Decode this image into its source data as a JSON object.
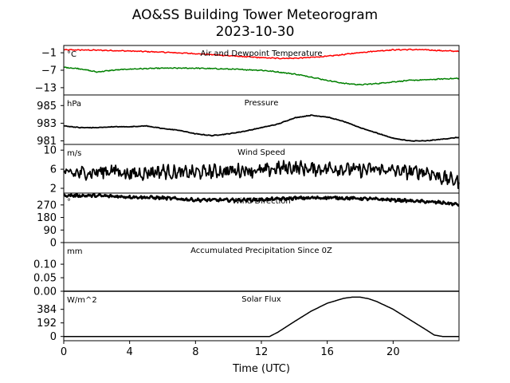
{
  "figure": {
    "title_line1": "AO&SS Building Tower Meteorogram",
    "title_line2": "2023-10-30",
    "xlabel": "Time (UTC)",
    "xticks": [
      "0",
      "4",
      "8",
      "12",
      "16",
      "20"
    ]
  },
  "chart_data": [
    {
      "type": "line",
      "title": "Air and Dewpoint Temperature",
      "unit": "°C",
      "xlim": [
        0,
        24
      ],
      "ylim": [
        -15.5,
        1.5
      ],
      "yticks": [
        -1,
        -7,
        -13
      ],
      "ytick_labels": [
        "−1",
        "−7",
        "−13"
      ],
      "series": [
        {
          "color": "#ff0000",
          "x": [
            0,
            2,
            4,
            6,
            8,
            10,
            12,
            13,
            14,
            15,
            16,
            17,
            18,
            19,
            20,
            21,
            22,
            23,
            24
          ],
          "values": [
            0.0,
            -0.1,
            -0.4,
            -0.8,
            -1.3,
            -2.0,
            -2.7,
            -2.9,
            -2.9,
            -2.6,
            -2.2,
            -1.6,
            -0.9,
            -0.4,
            0.0,
            0.1,
            0.0,
            -0.3,
            -0.5
          ]
        },
        {
          "color": "#008000",
          "x": [
            0,
            1,
            2,
            3,
            4,
            6,
            8,
            10,
            12,
            13,
            14,
            15,
            16,
            17,
            18,
            19,
            20,
            21,
            22,
            23,
            24
          ],
          "values": [
            -6.0,
            -6.5,
            -7.6,
            -7.0,
            -6.6,
            -6.3,
            -6.3,
            -6.6,
            -7.0,
            -7.6,
            -8.3,
            -9.3,
            -10.5,
            -11.5,
            -12.0,
            -11.6,
            -11.0,
            -10.5,
            -10.3,
            -10.0,
            -9.8
          ]
        }
      ]
    },
    {
      "type": "line",
      "title": "Pressure",
      "unit": "hPa",
      "xlim": [
        0,
        24
      ],
      "ylim": [
        980.6,
        986.2
      ],
      "yticks": [
        985,
        983,
        981
      ],
      "ytick_labels": [
        "985",
        "983",
        "981"
      ],
      "series": [
        {
          "color": "#000000",
          "x": [
            0,
            1,
            2,
            3,
            4,
            5,
            6,
            7,
            8,
            9,
            10,
            11,
            12,
            13,
            14,
            15,
            16,
            17,
            18,
            19,
            20,
            21,
            22,
            23,
            24
          ],
          "values": [
            982.7,
            982.5,
            982.5,
            982.6,
            982.6,
            982.7,
            982.4,
            982.2,
            981.8,
            981.6,
            981.8,
            982.1,
            982.5,
            982.9,
            983.6,
            983.9,
            983.7,
            983.2,
            982.5,
            981.9,
            981.3,
            981.0,
            981.0,
            981.2,
            981.4
          ]
        }
      ]
    },
    {
      "type": "line",
      "title": "Wind Speed",
      "unit": "m/s",
      "xlim": [
        0,
        24
      ],
      "ylim": [
        1,
        11.2
      ],
      "yticks": [
        10,
        6,
        2
      ],
      "ytick_labels": [
        "10",
        "6",
        "2"
      ],
      "series": [
        {
          "color": "#000000",
          "x": [
            0,
            1,
            2,
            3,
            4,
            5,
            6,
            7,
            8,
            9,
            10,
            11,
            12,
            13,
            14,
            15,
            16,
            17,
            18,
            19,
            20,
            21,
            22,
            23,
            24
          ],
          "values": [
            5.0,
            5.2,
            5.4,
            5.8,
            5.0,
            5.3,
            5.6,
            5.2,
            5.3,
            5.5,
            5.6,
            5.9,
            5.6,
            6.2,
            6.4,
            6.0,
            6.2,
            6.1,
            5.8,
            6.0,
            5.7,
            5.4,
            5.5,
            4.2,
            3.4
          ]
        }
      ]
    },
    {
      "type": "line",
      "title": "Wind Direction",
      "unit": "°",
      "xlim": [
        0,
        24
      ],
      "ylim": [
        0,
        355
      ],
      "yticks": [
        270,
        180,
        90,
        0
      ],
      "ytick_labels": [
        "270",
        "180",
        "90",
        "0"
      ],
      "series": [
        {
          "color": "#000000",
          "x": [
            0,
            2,
            4,
            6,
            8,
            10,
            12,
            14,
            16,
            18,
            20,
            22,
            23,
            24
          ],
          "values": [
            338,
            336,
            328,
            320,
            306,
            305,
            308,
            318,
            322,
            316,
            306,
            293,
            286,
            272
          ]
        }
      ]
    },
    {
      "type": "line",
      "title": "Accumulated Precipitation Since 0Z",
      "unit": "mm",
      "xlim": [
        0,
        24
      ],
      "ylim": [
        0,
        0.18
      ],
      "yticks": [
        0.1,
        0.05,
        0.0
      ],
      "ytick_labels": [
        "0.10",
        "0.05",
        "0.00"
      ],
      "series": [
        {
          "color": "#000000",
          "x": [
            0,
            24
          ],
          "values": [
            0.0,
            0.0
          ]
        }
      ]
    },
    {
      "type": "line",
      "title": "Solar Flux",
      "unit": "W/m^2",
      "xlim": [
        0,
        24
      ],
      "ylim": [
        -60,
        640
      ],
      "yticks": [
        384,
        192,
        0
      ],
      "ytick_labels": [
        "384",
        "192",
        "0"
      ],
      "series": [
        {
          "color": "#000000",
          "x": [
            0,
            12.5,
            13,
            14,
            15,
            16,
            17,
            17.5,
            18,
            18.5,
            19,
            20,
            21,
            22,
            22.5,
            23,
            24
          ],
          "values": [
            0,
            0,
            60,
            210,
            355,
            470,
            540,
            556,
            556,
            535,
            495,
            385,
            240,
            95,
            20,
            0,
            0
          ]
        }
      ]
    }
  ]
}
